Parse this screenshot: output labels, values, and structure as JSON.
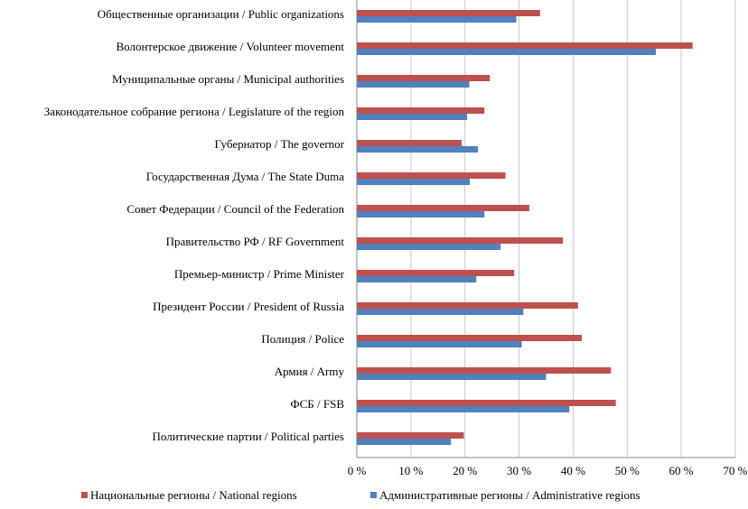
{
  "chart_data": {
    "type": "bar",
    "orientation": "horizontal",
    "title": "",
    "xlabel": "",
    "ylabel": "",
    "xlim": [
      0,
      70
    ],
    "x_ticks": [
      "0 %",
      "10 %",
      "20 %",
      "30 %",
      "40 %",
      "50 %",
      "60 %",
      "70 %"
    ],
    "grid": true,
    "legend_position": "bottom",
    "categories": [
      "Общественные организации / Public organizations",
      "Волонтерское движение / Volunteer movement",
      "Муниципальные органы / Municipal authorities",
      "Законодательное собрание региона / Legislature of the region",
      "Губернатор / The governor",
      "Государственная Дума / The State Duma",
      "Совет Федерации / Council of the Federation",
      "Правительство РФ / RF Government",
      "Премьер-министр / Prime Minister",
      "Президент России / President of Russia",
      "Полиция / Police",
      "Армия / Army",
      "ФСБ / FSB",
      "Политические партии / Political parties"
    ],
    "series": [
      {
        "name": "Национальные регионы / National regions",
        "color": "#c0504d",
        "values": [
          33.9,
          62.1,
          24.6,
          23.6,
          19.4,
          27.5,
          31.9,
          38.1,
          29.1,
          40.9,
          41.6,
          47.0,
          47.9,
          19.8
        ]
      },
      {
        "name": "Административные регионы / Administrative regions",
        "color": "#4f81bd",
        "values": [
          29.5,
          55.3,
          20.8,
          20.4,
          22.4,
          20.9,
          23.6,
          26.6,
          22.1,
          30.8,
          30.5,
          35.0,
          39.3,
          17.4
        ]
      }
    ]
  }
}
